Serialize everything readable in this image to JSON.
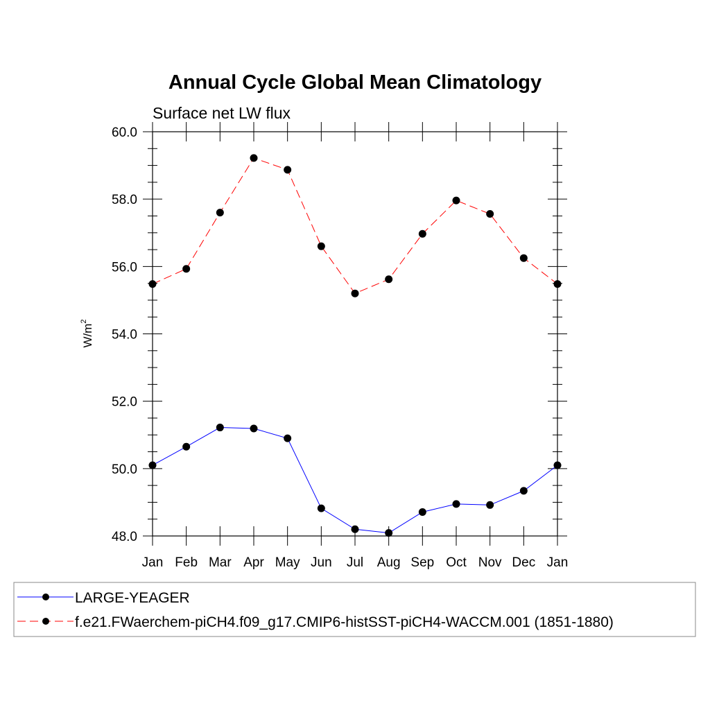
{
  "chart_data": {
    "type": "line",
    "title": "Annual Cycle Global Mean Climatology",
    "subtitle": "Surface net LW flux",
    "ylabel": "W/m",
    "ylabel_sup": "2",
    "xlabel": "",
    "categories": [
      "Jan",
      "Feb",
      "Mar",
      "Apr",
      "May",
      "Jun",
      "Jul",
      "Aug",
      "Sep",
      "Oct",
      "Nov",
      "Dec",
      "Jan"
    ],
    "ylim": [
      48.0,
      60.0
    ],
    "yticks": [
      "48.0",
      "50.0",
      "52.0",
      "54.0",
      "56.0",
      "58.0",
      "60.0"
    ],
    "ytick_values": [
      48,
      50,
      52,
      54,
      56,
      58,
      60
    ],
    "y_minor_step": 0.5,
    "series": [
      {
        "name": "LARGE-YEAGER",
        "color": "#0000ff",
        "dash": "solid",
        "values": [
          50.1,
          50.65,
          51.22,
          51.19,
          50.9,
          48.82,
          48.2,
          48.09,
          48.71,
          48.95,
          48.92,
          49.34,
          50.1
        ]
      },
      {
        "name": "f.e21.FWaerchem-piCH4.f09_g17.CMIP6-histSST-piCH4-WACCM.001 (1851-1880)",
        "color": "#ff0000",
        "dash": "dashed",
        "values": [
          55.48,
          55.93,
          57.6,
          59.22,
          58.87,
          56.6,
          55.2,
          55.62,
          56.97,
          57.96,
          57.56,
          56.25,
          55.48
        ]
      }
    ],
    "marker": "filled-circle",
    "marker_color": "#000000",
    "legend_position": "bottom"
  }
}
